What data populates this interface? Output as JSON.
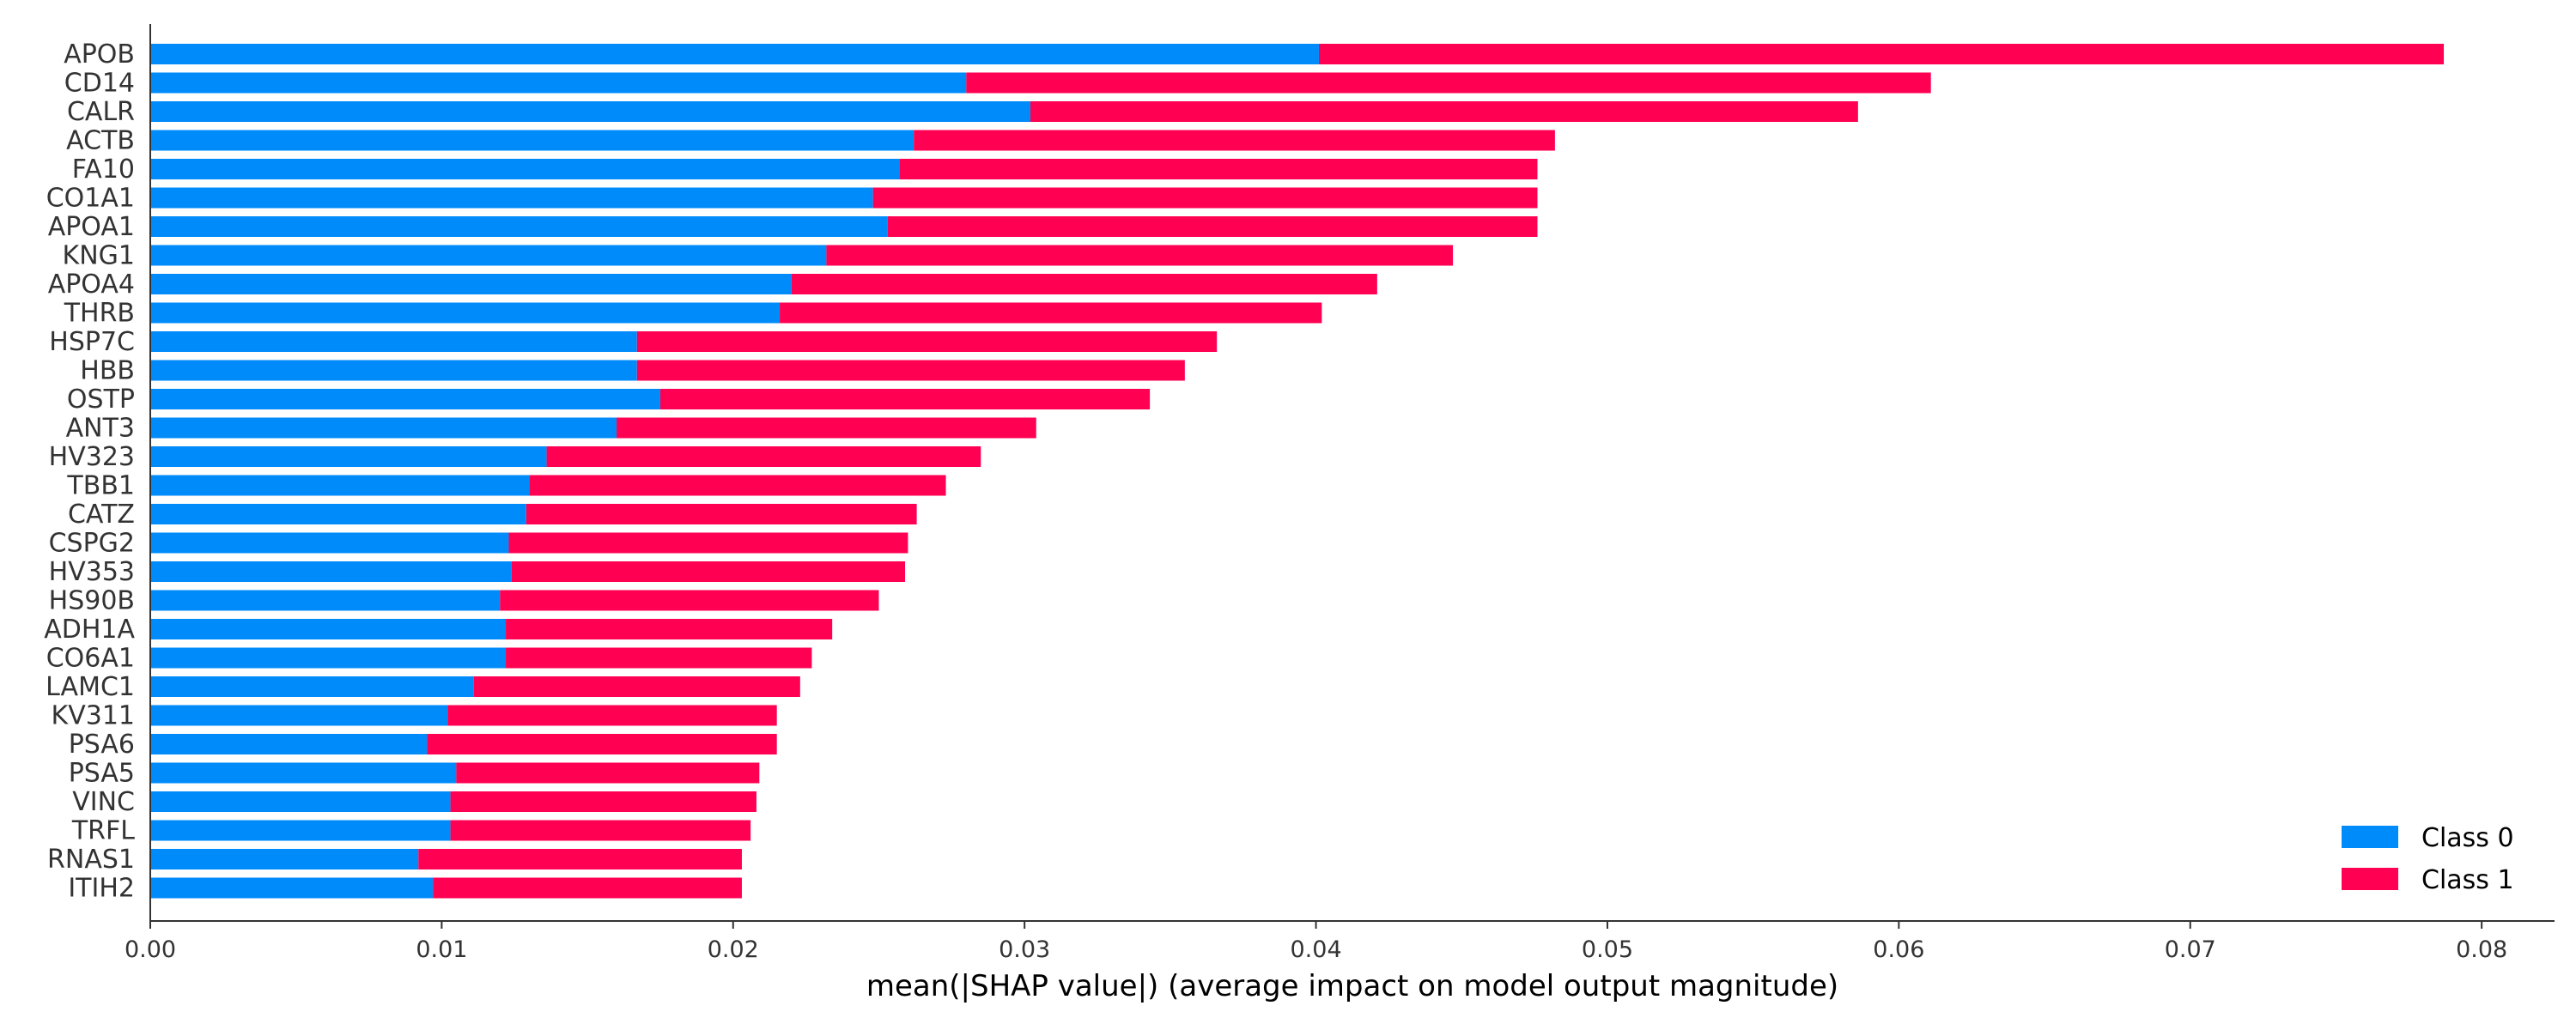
{
  "chart_data": {
    "type": "bar",
    "orientation": "horizontal",
    "stacked": true,
    "categories": [
      "APOB",
      "CD14",
      "CALR",
      "ACTB",
      "FA10",
      "CO1A1",
      "APOA1",
      "KNG1",
      "APOA4",
      "THRB",
      "HSP7C",
      "HBB",
      "OSTP",
      "ANT3",
      "HV323",
      "TBB1",
      "CATZ",
      "CSPG2",
      "HV353",
      "HS90B",
      "ADH1A",
      "CO6A1",
      "LAMC1",
      "KV311",
      "PSA6",
      "PSA5",
      "VINC",
      "TRFL",
      "RNAS1",
      "ITIH2"
    ],
    "series": [
      {
        "name": "Class 0",
        "color": "#008bfb",
        "values": [
          0.0401,
          0.028,
          0.0302,
          0.0262,
          0.0257,
          0.0248,
          0.0253,
          0.0232,
          0.022,
          0.0216,
          0.0167,
          0.0167,
          0.0175,
          0.016,
          0.0136,
          0.013,
          0.0129,
          0.0123,
          0.0124,
          0.012,
          0.0122,
          0.0122,
          0.0111,
          0.0102,
          0.0095,
          0.0105,
          0.0103,
          0.0103,
          0.0092,
          0.0097
        ]
      },
      {
        "name": "Class 1",
        "color": "#ff0052",
        "values": [
          0.0386,
          0.0331,
          0.0284,
          0.022,
          0.0219,
          0.0228,
          0.0223,
          0.0215,
          0.0201,
          0.0186,
          0.0199,
          0.0188,
          0.0168,
          0.0144,
          0.0149,
          0.0143,
          0.0134,
          0.0137,
          0.0135,
          0.013,
          0.0112,
          0.0105,
          0.0112,
          0.0113,
          0.012,
          0.0104,
          0.0105,
          0.0103,
          0.0111,
          0.0106
        ]
      }
    ],
    "xlim": [
      0,
      0.0825
    ],
    "xticks": [
      "0.00",
      "0.01",
      "0.02",
      "0.03",
      "0.04",
      "0.05",
      "0.06",
      "0.07",
      "0.08"
    ],
    "xlabel": "mean(|SHAP value|) (average impact on model output magnitude)",
    "ylabel": "",
    "title": "",
    "grid": false,
    "legend_position": "bottom-right"
  }
}
